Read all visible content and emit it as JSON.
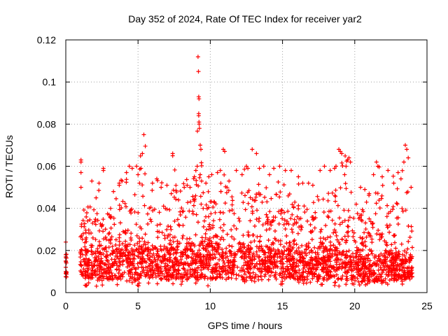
{
  "chart_data": {
    "type": "scatter",
    "title": "Day 352 of 2024, Rate Of TEC Index for receiver yar2",
    "xlabel": "GPS time / hours",
    "ylabel": "ROTI / TECUs",
    "xlim": [
      0,
      25
    ],
    "ylim": [
      0,
      0.12
    ],
    "x_ticks": [
      "0",
      "5",
      "10",
      "15",
      "20",
      "25"
    ],
    "y_ticks": [
      "0",
      "0.02",
      "0.04",
      "0.06",
      "0.08",
      "0.1",
      "0.12"
    ],
    "grid": true,
    "legend": "none",
    "marker": "+",
    "color": "#ff0000",
    "series": [
      {
        "profile": [
          [
            0.0,
            0.008,
            0.018
          ],
          [
            1.0,
            0.008,
            0.022
          ],
          [
            2.0,
            0.006,
            0.02
          ],
          [
            3.0,
            0.006,
            0.019
          ],
          [
            4.0,
            0.006,
            0.022
          ],
          [
            5.0,
            0.006,
            0.021
          ],
          [
            6.0,
            0.006,
            0.021
          ],
          [
            7.0,
            0.006,
            0.021
          ],
          [
            8.0,
            0.006,
            0.022
          ],
          [
            9.0,
            0.006,
            0.024
          ],
          [
            10.0,
            0.006,
            0.024
          ],
          [
            11.0,
            0.006,
            0.022
          ],
          [
            12.0,
            0.006,
            0.021
          ],
          [
            13.0,
            0.006,
            0.022
          ],
          [
            14.0,
            0.006,
            0.021
          ],
          [
            15.0,
            0.006,
            0.02
          ],
          [
            16.0,
            0.006,
            0.021
          ],
          [
            17.0,
            0.006,
            0.02
          ],
          [
            18.0,
            0.006,
            0.021
          ],
          [
            19.0,
            0.006,
            0.021
          ],
          [
            20.0,
            0.005,
            0.018
          ],
          [
            21.0,
            0.005,
            0.018
          ],
          [
            22.0,
            0.005,
            0.018
          ],
          [
            23.0,
            0.006,
            0.019
          ],
          [
            24.0,
            0.006,
            0.016
          ]
        ],
        "envelope": [
          [
            1.0,
            0.063
          ],
          [
            1.5,
            0.04
          ],
          [
            2.0,
            0.05
          ],
          [
            2.5,
            0.059
          ],
          [
            3.0,
            0.042
          ],
          [
            3.5,
            0.052
          ],
          [
            4.0,
            0.057
          ],
          [
            4.5,
            0.06
          ],
          [
            5.0,
            0.06
          ],
          [
            5.5,
            0.075
          ],
          [
            6.0,
            0.056
          ],
          [
            6.5,
            0.055
          ],
          [
            7.0,
            0.051
          ],
          [
            7.5,
            0.066
          ],
          [
            8.0,
            0.05
          ],
          [
            8.5,
            0.058
          ],
          [
            9.0,
            0.058
          ],
          [
            9.2,
            0.112
          ],
          [
            9.5,
            0.06
          ],
          [
            10.0,
            0.056
          ],
          [
            10.5,
            0.06
          ],
          [
            11.0,
            0.068
          ],
          [
            11.5,
            0.056
          ],
          [
            12.0,
            0.058
          ],
          [
            12.5,
            0.06
          ],
          [
            13.0,
            0.068
          ],
          [
            13.5,
            0.06
          ],
          [
            14.0,
            0.056
          ],
          [
            14.5,
            0.059
          ],
          [
            15.0,
            0.06
          ],
          [
            15.5,
            0.058
          ],
          [
            16.0,
            0.055
          ],
          [
            16.5,
            0.05
          ],
          [
            17.0,
            0.052
          ],
          [
            17.5,
            0.058
          ],
          [
            18.0,
            0.06
          ],
          [
            18.5,
            0.059
          ],
          [
            19.0,
            0.068
          ],
          [
            19.5,
            0.066
          ],
          [
            20.0,
            0.042
          ],
          [
            20.5,
            0.051
          ],
          [
            21.0,
            0.048
          ],
          [
            21.5,
            0.062
          ],
          [
            22.0,
            0.058
          ],
          [
            22.5,
            0.055
          ],
          [
            23.0,
            0.057
          ],
          [
            23.5,
            0.07
          ],
          [
            24.0,
            0.05
          ]
        ],
        "highlights": [
          [
            0.0,
            0.024
          ],
          [
            0.0,
            0.018
          ],
          [
            0.0,
            0.015
          ],
          [
            0.0,
            0.012
          ],
          [
            0.0,
            0.01
          ],
          [
            0.0,
            0.009
          ],
          [
            1.05,
            0.063
          ],
          [
            1.05,
            0.062
          ],
          [
            1.05,
            0.057
          ],
          [
            1.05,
            0.05
          ],
          [
            1.8,
            0.053
          ],
          [
            2.1,
            0.045
          ],
          [
            2.3,
            0.052
          ],
          [
            2.6,
            0.059
          ],
          [
            2.6,
            0.058
          ],
          [
            3.1,
            0.04
          ],
          [
            3.3,
            0.048
          ],
          [
            3.7,
            0.052
          ],
          [
            3.7,
            0.051
          ],
          [
            3.9,
            0.053
          ],
          [
            4.2,
            0.057
          ],
          [
            4.4,
            0.06
          ],
          [
            4.6,
            0.059
          ],
          [
            4.9,
            0.06
          ],
          [
            5.0,
            0.056
          ],
          [
            5.1,
            0.052
          ],
          [
            5.2,
            0.059
          ],
          [
            5.3,
            0.066
          ],
          [
            5.4,
            0.075
          ],
          [
            6.0,
            0.052
          ],
          [
            6.3,
            0.054
          ],
          [
            6.6,
            0.05
          ],
          [
            7.0,
            0.051
          ],
          [
            7.3,
            0.047
          ],
          [
            7.4,
            0.066
          ],
          [
            7.4,
            0.065
          ],
          [
            7.8,
            0.044
          ],
          [
            8.2,
            0.05
          ],
          [
            8.4,
            0.051
          ],
          [
            8.6,
            0.05
          ],
          [
            8.9,
            0.055
          ],
          [
            9.0,
            0.058
          ],
          [
            9.15,
            0.112
          ],
          [
            9.18,
            0.105
          ],
          [
            9.2,
            0.093
          ],
          [
            9.22,
            0.092
          ],
          [
            9.2,
            0.085
          ],
          [
            9.2,
            0.084
          ],
          [
            9.22,
            0.081
          ],
          [
            9.23,
            0.08
          ],
          [
            9.25,
            0.078
          ],
          [
            9.3,
            0.07
          ],
          [
            9.35,
            0.068
          ],
          [
            9.1,
            0.06
          ],
          [
            9.3,
            0.056
          ],
          [
            9.4,
            0.053
          ],
          [
            9.7,
            0.052
          ],
          [
            9.9,
            0.055
          ],
          [
            10.1,
            0.056
          ],
          [
            10.5,
            0.057
          ],
          [
            10.7,
            0.058
          ],
          [
            10.9,
            0.068
          ],
          [
            11.0,
            0.067
          ],
          [
            11.3,
            0.053
          ],
          [
            11.8,
            0.058
          ],
          [
            12.2,
            0.056
          ],
          [
            12.5,
            0.06
          ],
          [
            12.6,
            0.059
          ],
          [
            12.9,
            0.068
          ],
          [
            13.2,
            0.066
          ],
          [
            13.4,
            0.059
          ],
          [
            13.7,
            0.06
          ],
          [
            14.1,
            0.056
          ],
          [
            14.4,
            0.059
          ],
          [
            14.8,
            0.06
          ],
          [
            15.2,
            0.058
          ],
          [
            15.6,
            0.058
          ],
          [
            16.1,
            0.055
          ],
          [
            16.4,
            0.052
          ],
          [
            16.8,
            0.052
          ],
          [
            17.1,
            0.051
          ],
          [
            17.6,
            0.058
          ],
          [
            17.9,
            0.06
          ],
          [
            18.3,
            0.058
          ],
          [
            18.6,
            0.059
          ],
          [
            18.7,
            0.06
          ],
          [
            18.9,
            0.068
          ],
          [
            19.0,
            0.067
          ],
          [
            19.1,
            0.066
          ],
          [
            19.4,
            0.06
          ],
          [
            19.5,
            0.063
          ],
          [
            19.6,
            0.064
          ],
          [
            19.7,
            0.062
          ],
          [
            19.3,
            0.056
          ],
          [
            20.1,
            0.042
          ],
          [
            20.4,
            0.05
          ],
          [
            20.7,
            0.049
          ],
          [
            21.0,
            0.047
          ],
          [
            21.3,
            0.056
          ],
          [
            21.5,
            0.062
          ],
          [
            21.6,
            0.06
          ],
          [
            21.9,
            0.055
          ],
          [
            22.3,
            0.058
          ],
          [
            22.7,
            0.052
          ],
          [
            23.0,
            0.057
          ],
          [
            23.2,
            0.054
          ],
          [
            23.4,
            0.062
          ],
          [
            23.5,
            0.07
          ],
          [
            23.6,
            0.068
          ],
          [
            23.7,
            0.064
          ],
          [
            23.9,
            0.05
          ]
        ]
      }
    ]
  }
}
